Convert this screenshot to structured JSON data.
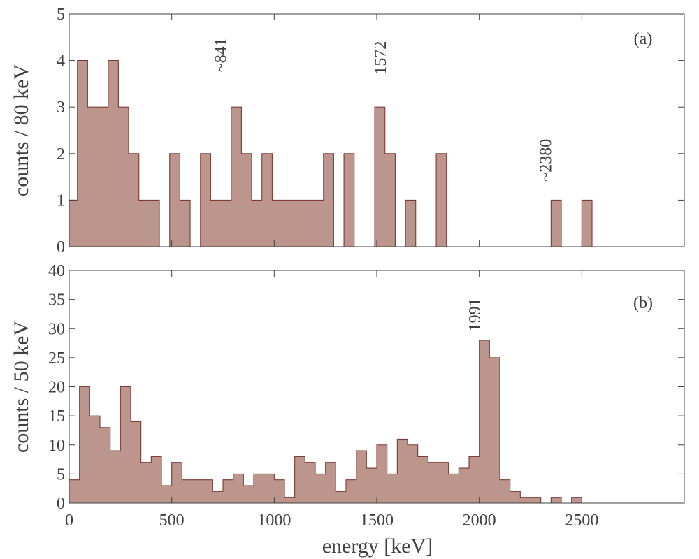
{
  "colors": {
    "fill": "#bc958d",
    "edge": "#7e3a32",
    "axis": "#404040",
    "background": "#ffffff"
  },
  "xlabel": "energy [keV]",
  "x_tick_labels": [
    "0",
    "500",
    "1000",
    "1500",
    "2000",
    "2500"
  ],
  "chart_data": [
    {
      "type": "histogram",
      "panel": "(a)",
      "ylabel": "counts / 80 keV",
      "bin_width": 80,
      "xlim": [
        0,
        3000
      ],
      "ylim": [
        0,
        5
      ],
      "x_ticks": [
        0,
        500,
        1000,
        1500,
        2000,
        2500
      ],
      "y_ticks": [
        0,
        1,
        2,
        3,
        4,
        5
      ],
      "y_tick_labels": [
        "0",
        "1",
        "2",
        "3",
        "4",
        "5"
      ],
      "grid": false,
      "legend": "none",
      "bin_edges": [
        0,
        40,
        90,
        180,
        190,
        240,
        290,
        340,
        440,
        490,
        540,
        590,
        640,
        690,
        790,
        840,
        890,
        940,
        990,
        1040,
        1090,
        1140,
        1190,
        1240,
        1290,
        1340,
        1390,
        1440,
        1490,
        1540,
        1590,
        1640,
        1690,
        1740,
        1790,
        1840,
        1890,
        2300,
        2350,
        2400,
        2450,
        2500,
        2550,
        3000
      ],
      "counts": [
        1,
        4,
        3,
        3,
        4,
        3,
        2,
        1,
        0,
        2,
        1,
        0,
        2,
        1,
        3,
        2,
        1,
        2,
        1,
        1,
        1,
        1,
        1,
        2,
        0,
        2,
        0,
        0,
        3,
        2,
        0,
        1,
        0,
        0,
        2,
        0,
        0,
        0,
        1,
        0,
        0,
        1,
        0
      ],
      "annotations": [
        {
          "text": "~841",
          "x": 765,
          "y": 3.75
        },
        {
          "text": "1572",
          "x": 1545,
          "y": 3.7
        },
        {
          "text": "~2380",
          "x": 2350,
          "y": 1.4
        }
      ]
    },
    {
      "type": "histogram",
      "panel": "(b)",
      "ylabel": "counts / 50 keV",
      "bin_width": 50,
      "xlim": [
        0,
        3000
      ],
      "ylim": [
        0,
        40
      ],
      "x_ticks": [
        0,
        500,
        1000,
        1500,
        2000,
        2500
      ],
      "y_ticks": [
        0,
        5,
        10,
        15,
        20,
        25,
        30,
        35,
        40
      ],
      "y_tick_labels": [
        "0",
        "5",
        "10",
        "15",
        "20",
        "25",
        "30",
        "35",
        "40"
      ],
      "grid": false,
      "legend": "none",
      "bin_start": 0,
      "counts": [
        4,
        20,
        15,
        13,
        9,
        20,
        14,
        7,
        8,
        3,
        7,
        4,
        4,
        4,
        2,
        4,
        5,
        3,
        5,
        5,
        4,
        1,
        8,
        7,
        5,
        7,
        2,
        4,
        9,
        6,
        10,
        5,
        11,
        10,
        8,
        7,
        7,
        5,
        6,
        8,
        28,
        25,
        4,
        2,
        1,
        1,
        0,
        1,
        0,
        1,
        0,
        0,
        0,
        0,
        0,
        0,
        0,
        0,
        0,
        0
      ],
      "annotations": [
        {
          "text": "1991",
          "x": 2005,
          "y": 29.5
        }
      ]
    }
  ]
}
